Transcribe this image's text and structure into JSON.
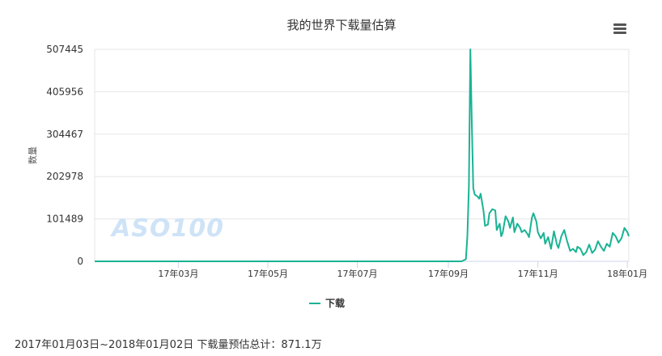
{
  "chart_data": {
    "type": "line",
    "title": "我的世界下载量估算",
    "ylabel": "数量",
    "xlabel": "",
    "y_ticks": [
      "0",
      "101489",
      "202978",
      "304467",
      "405956",
      "507445"
    ],
    "ylim": [
      0,
      507445
    ],
    "x_ticks": [
      "17年03月",
      "17年05月",
      "17年07月",
      "17年09月",
      "17年11月",
      "18年01月"
    ],
    "x_range": [
      "2017-01-03",
      "2018-01-02"
    ],
    "grid": true,
    "legend_position": "bottom-center",
    "series": [
      {
        "name": "下载",
        "color": "#1ab394",
        "points": [
          [
            "2017-01-03",
            0
          ],
          [
            "2017-03-01",
            0
          ],
          [
            "2017-05-01",
            0
          ],
          [
            "2017-07-01",
            0
          ],
          [
            "2017-09-01",
            0
          ],
          [
            "2017-09-10",
            0
          ],
          [
            "2017-09-13",
            5000
          ],
          [
            "2017-09-14",
            60000
          ],
          [
            "2017-09-15",
            180000
          ],
          [
            "2017-09-16",
            507445
          ],
          [
            "2017-09-17",
            330000
          ],
          [
            "2017-09-18",
            175000
          ],
          [
            "2017-09-19",
            160000
          ],
          [
            "2017-09-21",
            155000
          ],
          [
            "2017-09-22",
            150000
          ],
          [
            "2017-09-23",
            162000
          ],
          [
            "2017-09-25",
            120000
          ],
          [
            "2017-09-26",
            85000
          ],
          [
            "2017-09-28",
            88000
          ],
          [
            "2017-09-29",
            115000
          ],
          [
            "2017-10-01",
            125000
          ],
          [
            "2017-10-03",
            122000
          ],
          [
            "2017-10-04",
            75000
          ],
          [
            "2017-10-06",
            90000
          ],
          [
            "2017-10-07",
            60000
          ],
          [
            "2017-10-08",
            68000
          ],
          [
            "2017-10-10",
            108000
          ],
          [
            "2017-10-12",
            95000
          ],
          [
            "2017-10-13",
            80000
          ],
          [
            "2017-10-15",
            105000
          ],
          [
            "2017-10-16",
            70000
          ],
          [
            "2017-10-18",
            90000
          ],
          [
            "2017-10-20",
            80000
          ],
          [
            "2017-10-21",
            70000
          ],
          [
            "2017-10-23",
            75000
          ],
          [
            "2017-10-25",
            65000
          ],
          [
            "2017-10-26",
            58000
          ],
          [
            "2017-10-28",
            105000
          ],
          [
            "2017-10-29",
            115000
          ],
          [
            "2017-10-31",
            95000
          ],
          [
            "2017-11-01",
            70000
          ],
          [
            "2017-11-03",
            55000
          ],
          [
            "2017-11-05",
            68000
          ],
          [
            "2017-11-06",
            42000
          ],
          [
            "2017-11-08",
            58000
          ],
          [
            "2017-11-10",
            30000
          ],
          [
            "2017-11-12",
            72000
          ],
          [
            "2017-11-14",
            40000
          ],
          [
            "2017-11-15",
            32000
          ],
          [
            "2017-11-17",
            60000
          ],
          [
            "2017-11-19",
            75000
          ],
          [
            "2017-11-21",
            48000
          ],
          [
            "2017-11-23",
            25000
          ],
          [
            "2017-11-25",
            30000
          ],
          [
            "2017-11-27",
            22000
          ],
          [
            "2017-11-28",
            35000
          ],
          [
            "2017-11-30",
            30000
          ],
          [
            "2017-12-02",
            15000
          ],
          [
            "2017-12-04",
            22000
          ],
          [
            "2017-12-06",
            40000
          ],
          [
            "2017-12-08",
            20000
          ],
          [
            "2017-12-10",
            28000
          ],
          [
            "2017-12-12",
            48000
          ],
          [
            "2017-12-14",
            35000
          ],
          [
            "2017-12-16",
            25000
          ],
          [
            "2017-12-18",
            42000
          ],
          [
            "2017-12-20",
            35000
          ],
          [
            "2017-12-22",
            68000
          ],
          [
            "2017-12-24",
            60000
          ],
          [
            "2017-12-26",
            45000
          ],
          [
            "2017-12-28",
            55000
          ],
          [
            "2017-12-30",
            80000
          ],
          [
            "2018-01-01",
            70000
          ],
          [
            "2018-01-02",
            60000
          ]
        ]
      }
    ]
  },
  "watermark": "ASO100",
  "summary": "2017年01月03日~2018年01月02日 下载量预估总计：871.1万"
}
